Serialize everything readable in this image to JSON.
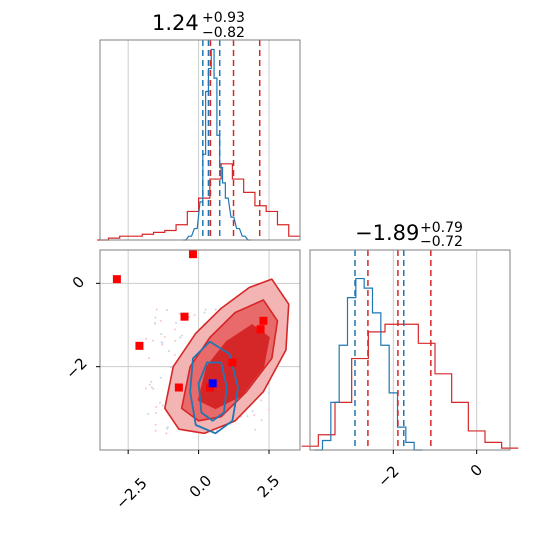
{
  "colors": {
    "red": "#d62728",
    "blue": "#1f77b4",
    "marker_red": "#ff0000",
    "marker_blue": "#0000ff",
    "grid": "#cccccc",
    "frame": "#808080",
    "fill_light": "#f3b4b4",
    "fill_mid": "#e86a6a",
    "fill_dark": "#d62728"
  },
  "chart_data": [
    {
      "panel": "marginal-param-1",
      "type": "area",
      "title_main": "1.24",
      "title_plus": "+0.93",
      "title_minus": "−0.82",
      "xlim": [
        -3.5,
        3.6
      ],
      "grid": true,
      "red_hist": {
        "x": [
          -3.4,
          -3.0,
          -2.6,
          -2.2,
          -1.8,
          -1.4,
          -1.0,
          -0.6,
          -0.2,
          0.2,
          0.6,
          1.0,
          1.4,
          1.8,
          2.2,
          2.6,
          3.0,
          3.4
        ],
        "y": [
          0.0,
          0.01,
          0.02,
          0.02,
          0.03,
          0.04,
          0.05,
          0.08,
          0.15,
          0.22,
          0.32,
          0.4,
          0.32,
          0.25,
          0.18,
          0.15,
          0.08,
          0.02
        ]
      },
      "blue_hist": {
        "x": [
          -0.5,
          -0.3,
          -0.1,
          0.1,
          0.2,
          0.3,
          0.4,
          0.5,
          0.6,
          0.7,
          0.8,
          0.9,
          1.0,
          1.2,
          1.4,
          1.6,
          1.8
        ],
        "y": [
          0.0,
          0.02,
          0.06,
          0.2,
          0.45,
          0.78,
          0.9,
          1.0,
          0.85,
          0.55,
          0.38,
          0.3,
          0.22,
          0.12,
          0.06,
          0.02,
          0.0
        ]
      },
      "red_quantiles": [
        0.42,
        1.24,
        2.17
      ],
      "blue_quantiles": [
        0.15,
        0.35,
        0.75
      ],
      "xticks": [
        -2.5,
        0.0,
        2.5
      ]
    },
    {
      "panel": "joint-param-1-2",
      "type": "scatter",
      "xlim": [
        -3.5,
        3.6
      ],
      "ylim": [
        -4.0,
        0.8
      ],
      "xticks": [
        -2.5,
        0.0,
        2.5
      ],
      "xtick_labels": [
        "−2.5",
        "0.0",
        "2.5"
      ],
      "yticks": [
        0,
        -2
      ],
      "ytick_labels": [
        "0",
        "−2"
      ],
      "grid": true,
      "red_markers": [
        [
          -2.9,
          0.1
        ],
        [
          -0.2,
          0.7
        ],
        [
          -0.5,
          -0.8
        ],
        [
          -2.1,
          -1.5
        ],
        [
          -0.7,
          -2.5
        ],
        [
          1.2,
          -1.9
        ],
        [
          2.3,
          -0.9
        ],
        [
          2.2,
          -1.1
        ],
        [
          0.4,
          -2.5
        ]
      ],
      "blue_markers": [
        [
          0.5,
          -2.4
        ]
      ],
      "contours_red": [
        [
          [
            -1.2,
            -3.0
          ],
          [
            -0.9,
            -2.0
          ],
          [
            -0.1,
            -1.2
          ],
          [
            0.8,
            -0.6
          ],
          [
            1.8,
            -0.1
          ],
          [
            2.6,
            0.1
          ],
          [
            3.2,
            -0.5
          ],
          [
            3.1,
            -1.6
          ],
          [
            2.3,
            -2.6
          ],
          [
            1.3,
            -3.3
          ],
          [
            0.2,
            -3.6
          ],
          [
            -0.7,
            -3.5
          ]
        ],
        [
          [
            -0.6,
            -3.0
          ],
          [
            -0.3,
            -2.0
          ],
          [
            0.4,
            -1.3
          ],
          [
            1.3,
            -0.7
          ],
          [
            2.3,
            -0.4
          ],
          [
            2.8,
            -0.9
          ],
          [
            2.6,
            -1.8
          ],
          [
            1.7,
            -2.6
          ],
          [
            0.8,
            -3.2
          ],
          [
            0.0,
            -3.3
          ]
        ],
        [
          [
            0.0,
            -2.8
          ],
          [
            0.3,
            -2.0
          ],
          [
            1.0,
            -1.4
          ],
          [
            1.9,
            -1.0
          ],
          [
            2.5,
            -1.3
          ],
          [
            2.3,
            -2.0
          ],
          [
            1.5,
            -2.7
          ],
          [
            0.6,
            -3.0
          ]
        ]
      ],
      "contours_blue": [
        [
          [
            -0.1,
            -3.4
          ],
          [
            -0.3,
            -2.6
          ],
          [
            -0.2,
            -1.8
          ],
          [
            0.4,
            -1.4
          ],
          [
            1.1,
            -1.7
          ],
          [
            1.4,
            -2.5
          ],
          [
            1.2,
            -3.3
          ],
          [
            0.6,
            -3.6
          ]
        ],
        [
          [
            0.1,
            -3.1
          ],
          [
            0.0,
            -2.4
          ],
          [
            0.3,
            -1.9
          ],
          [
            0.8,
            -1.9
          ],
          [
            1.0,
            -2.5
          ],
          [
            0.9,
            -3.1
          ],
          [
            0.5,
            -3.3
          ]
        ]
      ]
    },
    {
      "panel": "marginal-param-2",
      "type": "area",
      "title_main": "−1.89",
      "title_plus": "+0.79",
      "title_minus": "−0.72",
      "xlim": [
        -4.0,
        0.8
      ],
      "xticks": [
        -2,
        0
      ],
      "xtick_labels": [
        "−2",
        "0"
      ],
      "grid": true,
      "red_hist": {
        "x": [
          -4.0,
          -3.6,
          -3.2,
          -2.8,
          -2.4,
          -2.0,
          -1.6,
          -1.2,
          -0.8,
          -0.4,
          0.0,
          0.4,
          0.8
        ],
        "y": [
          0.02,
          0.08,
          0.25,
          0.48,
          0.62,
          0.66,
          0.66,
          0.56,
          0.4,
          0.25,
          0.1,
          0.04,
          0.01
        ]
      },
      "blue_hist": {
        "x": [
          -3.8,
          -3.6,
          -3.4,
          -3.2,
          -3.0,
          -2.8,
          -2.6,
          -2.4,
          -2.2,
          -2.0,
          -1.8,
          -1.6,
          -1.4
        ],
        "y": [
          0.0,
          0.05,
          0.25,
          0.55,
          0.8,
          0.9,
          0.85,
          0.72,
          0.55,
          0.3,
          0.12,
          0.04,
          0.0
        ]
      },
      "red_quantiles": [
        -2.61,
        -1.89,
        -1.1
      ],
      "blue_quantiles": [
        -2.92,
        -1.75,
        -1.75
      ]
    }
  ]
}
